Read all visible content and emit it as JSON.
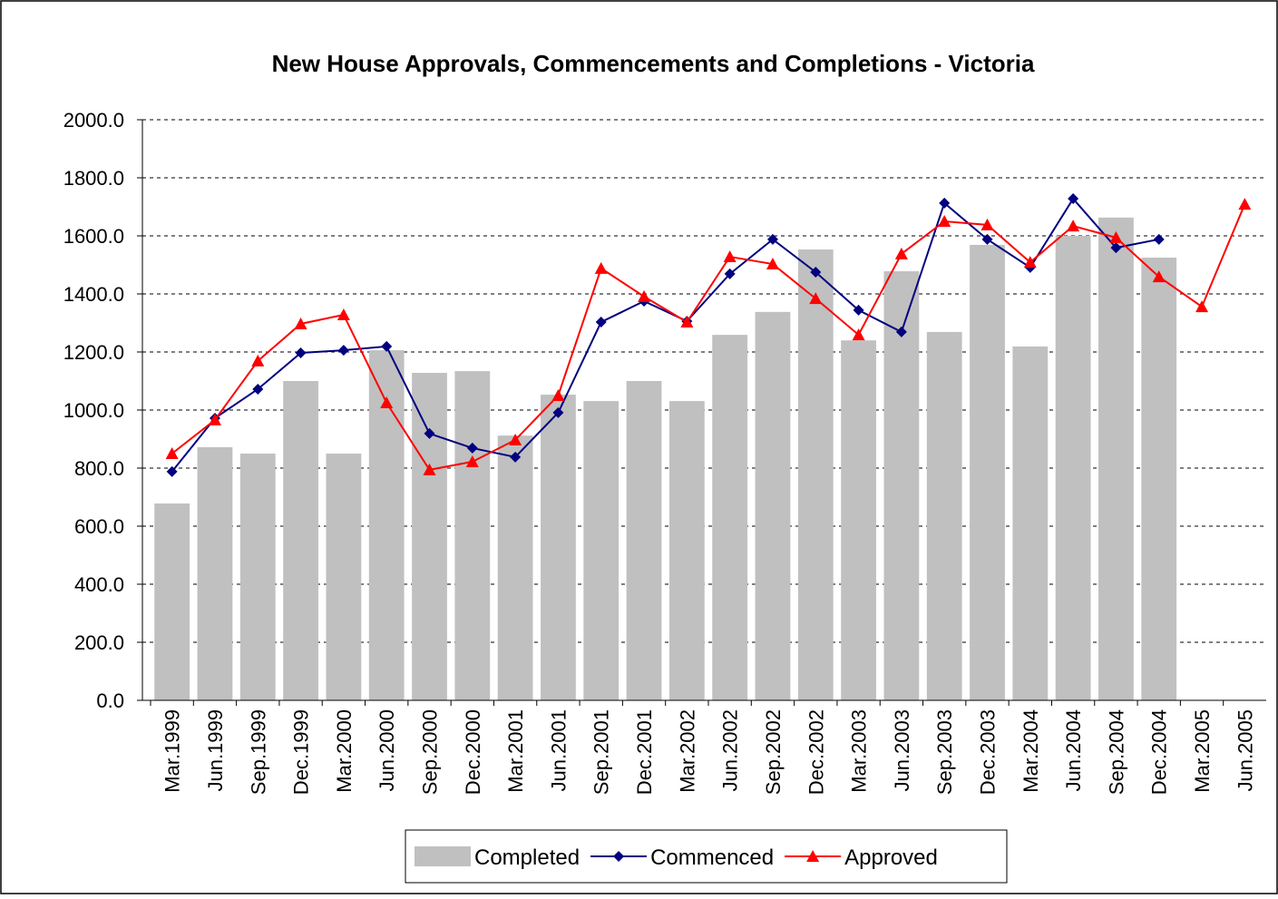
{
  "chart_data": {
    "type": "bar-line",
    "title": "New House Approvals, Commencements and Completions - Victoria",
    "categories": [
      "Mar.1999",
      "Jun.1999",
      "Sep.1999",
      "Dec.1999",
      "Mar.2000",
      "Jun.2000",
      "Sep.2000",
      "Dec.2000",
      "Mar.2001",
      "Jun.2001",
      "Sep.2001",
      "Dec.2001",
      "Mar.2002",
      "Jun.2002",
      "Sep.2002",
      "Dec.2002",
      "Mar.2003",
      "Jun.2003",
      "Sep.2003",
      "Dec.2003",
      "Mar.2004",
      "Jun.2004",
      "Sep.2004",
      "Dec.2004",
      "Mar.2005",
      "Jun.2005"
    ],
    "series": [
      {
        "name": "Completed",
        "kind": "bar",
        "color": "#c0c0c0",
        "values": [
          678,
          872,
          850,
          1100,
          850,
          1206,
          1128,
          1134,
          912,
          1053,
          1031,
          1100,
          1031,
          1259,
          1338,
          1553,
          1240,
          1478,
          1269,
          1569,
          1219,
          1600,
          1663,
          1525,
          null,
          null
        ]
      },
      {
        "name": "Commenced",
        "kind": "line",
        "marker": "diamond",
        "color": "#000080",
        "values": [
          788,
          972,
          1072,
          1197,
          1206,
          1219,
          919,
          869,
          838,
          991,
          1303,
          1375,
          1306,
          1469,
          1588,
          1475,
          1344,
          1269,
          1713,
          1588,
          1491,
          1728,
          1559,
          1588,
          null,
          null
        ]
      },
      {
        "name": "Approved",
        "kind": "line",
        "marker": "triangle",
        "color": "#ff0000",
        "values": [
          850,
          966,
          1169,
          1297,
          1328,
          1025,
          794,
          822,
          897,
          1050,
          1488,
          1391,
          1303,
          1528,
          1503,
          1384,
          1259,
          1538,
          1650,
          1638,
          1509,
          1634,
          1594,
          1459,
          1356,
          1709
        ]
      }
    ],
    "ylim": [
      0,
      2000
    ],
    "yticks": [
      {
        "value": 0,
        "label": "0.0"
      },
      {
        "value": 200,
        "label": "200.0"
      },
      {
        "value": 400,
        "label": "400.0"
      },
      {
        "value": 600,
        "label": "600.0"
      },
      {
        "value": 800,
        "label": "800.0"
      },
      {
        "value": 1000,
        "label": "1000.0"
      },
      {
        "value": 1200,
        "label": "1200.0"
      },
      {
        "value": 1400,
        "label": "1400.0"
      },
      {
        "value": 1600,
        "label": "1600.0"
      },
      {
        "value": 1800,
        "label": "1800.0"
      },
      {
        "value": 2000,
        "label": "2000.0"
      }
    ],
    "grid": true,
    "legend": "bottom"
  }
}
